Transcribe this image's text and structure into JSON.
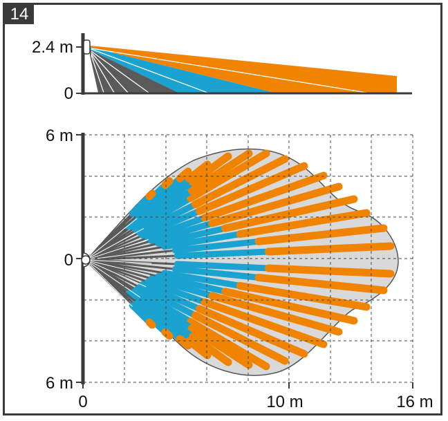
{
  "figure_number": "14",
  "colors": {
    "frame": "#3a3a3a",
    "axis": "#3a3a3a",
    "long_range": "#f08300",
    "mid_range": "#1aa3d1",
    "short_range": "#5a5a5a",
    "coverage_area": "#d9d9d9",
    "grid": "#444444"
  },
  "side_view": {
    "y_top_label": "2.4 m",
    "y_bottom_label": "0",
    "mount_height_m": 2.4
  },
  "top_view": {
    "y_top_label": "6 m",
    "y_mid_label": "0",
    "y_bottom_label": "6 m",
    "x_tick_labels": [
      "0",
      "10 m",
      "16 m"
    ],
    "x_range_m": [
      0,
      16
    ],
    "y_range_m": [
      -6,
      6
    ]
  }
}
